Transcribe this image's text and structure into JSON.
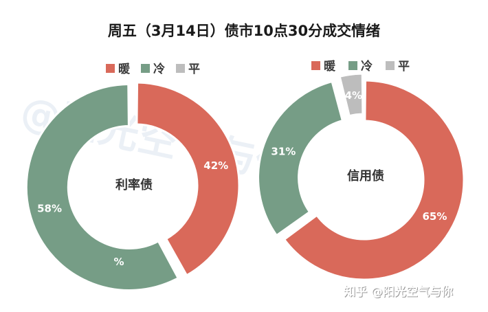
{
  "title": "周五（3月14日）债市10点30分成交情绪",
  "legend": [
    {
      "label": "暖",
      "color": "#d9695a"
    },
    {
      "label": "冷",
      "color": "#769d86"
    },
    {
      "label": "平",
      "color": "#bdbdbd"
    }
  ],
  "watermark": "@阳光空气与你",
  "credit": "知乎 @阳光空气与你",
  "chart_data": [
    {
      "type": "pie",
      "center_label": "利率债",
      "categories": [
        "暖",
        "冷",
        "平"
      ],
      "values": [
        42,
        58,
        0
      ],
      "data_labels": [
        "42%",
        "58%",
        "%"
      ],
      "colors": [
        "#d9695a",
        "#769d86",
        "#bdbdbd"
      ]
    },
    {
      "type": "pie",
      "center_label": "信用债",
      "categories": [
        "暖",
        "冷",
        "平"
      ],
      "values": [
        65,
        31,
        4
      ],
      "data_labels": [
        "65%",
        "31%",
        "4%"
      ],
      "colors": [
        "#d9695a",
        "#769d86",
        "#bdbdbd"
      ]
    }
  ]
}
